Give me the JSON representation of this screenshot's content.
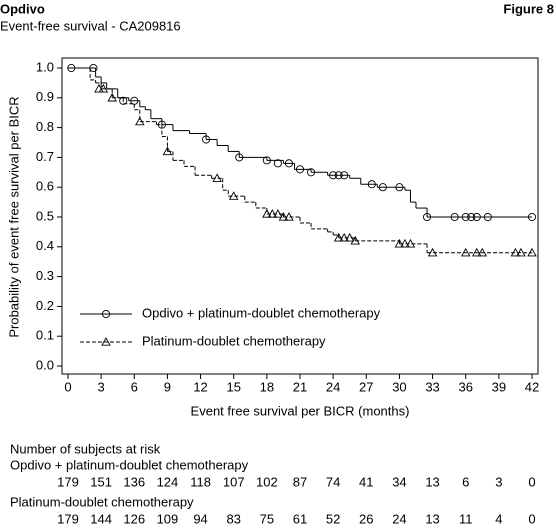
{
  "header": {
    "title": "Opdivo",
    "figure": "Figure 8",
    "subtitle": "Event-free survival - CA209816"
  },
  "chart_data": {
    "type": "step",
    "x_label": "Event free survival per BICR (months)",
    "y_label": "Probability of event free survival per BICR",
    "xlim": [
      -0.5,
      42.5
    ],
    "ylim": [
      0,
      1.0
    ],
    "xticks": [
      0,
      3,
      6,
      9,
      12,
      15,
      18,
      21,
      24,
      27,
      30,
      33,
      36,
      39,
      42
    ],
    "yticks": [
      {
        "value": 0,
        "label": "0.0"
      },
      0.1,
      0.2,
      0.3,
      0.4,
      0.5,
      0.6,
      0.7,
      0.8,
      0.9,
      {
        "value": 1,
        "label": "1.0"
      }
    ],
    "series": [
      {
        "name": "Opdivo + platinum-doublet chemotherapy",
        "color": "#000000",
        "line_style": "solid",
        "marker": "circle",
        "x": [
          0,
          2.5,
          3,
          3.5,
          4.5,
          5.5,
          6.5,
          7,
          7.5,
          8.5,
          9.5,
          11,
          12.5,
          13.5,
          14.5,
          15.5,
          18,
          19.5,
          20.5,
          22,
          23.5,
          25.5,
          26.5,
          28,
          30.5,
          31,
          31.5,
          32.5,
          42
        ],
        "values": [
          1.0,
          0.97,
          0.95,
          0.93,
          0.9,
          0.89,
          0.87,
          0.86,
          0.83,
          0.81,
          0.79,
          0.78,
          0.76,
          0.74,
          0.72,
          0.7,
          0.69,
          0.68,
          0.66,
          0.65,
          0.64,
          0.63,
          0.61,
          0.6,
          0.59,
          0.55,
          0.53,
          0.5,
          0.5
        ],
        "censor_x": [
          0.3,
          2.3,
          5,
          6,
          8.5,
          12.5,
          15.5,
          18,
          19,
          20,
          21,
          22,
          24,
          24.5,
          25,
          27.5,
          28.5,
          30,
          32.5,
          35,
          36,
          36.5,
          37,
          38,
          42
        ],
        "censor_values": [
          1.0,
          1.0,
          0.89,
          0.89,
          0.81,
          0.76,
          0.7,
          0.69,
          0.68,
          0.68,
          0.66,
          0.65,
          0.64,
          0.64,
          0.64,
          0.61,
          0.6,
          0.6,
          0.5,
          0.5,
          0.5,
          0.5,
          0.5,
          0.5,
          0.5
        ]
      },
      {
        "name": "Platinum-doublet chemotherapy",
        "color": "#000000",
        "line_style": "dashed",
        "marker": "triangle",
        "x": [
          0,
          2,
          2.5,
          3,
          4,
          5,
          6,
          6.5,
          8,
          8.5,
          9,
          9.5,
          10.5,
          11.5,
          13,
          14,
          14.5,
          16,
          17,
          18,
          19.5,
          21,
          22,
          23.5,
          24,
          24.5,
          26,
          30,
          32.5,
          42
        ],
        "values": [
          1.0,
          0.96,
          0.95,
          0.93,
          0.9,
          0.88,
          0.86,
          0.82,
          0.81,
          0.77,
          0.72,
          0.69,
          0.67,
          0.64,
          0.63,
          0.59,
          0.57,
          0.55,
          0.53,
          0.51,
          0.5,
          0.48,
          0.46,
          0.45,
          0.44,
          0.43,
          0.42,
          0.41,
          0.38,
          0.38
        ],
        "censor_x": [
          2.8,
          3.2,
          4,
          6.5,
          9,
          13.5,
          15,
          18,
          18.5,
          19,
          19.5,
          20,
          24.5,
          25,
          25.5,
          26,
          30,
          30.5,
          31,
          33,
          36,
          37,
          37.5,
          40.5,
          41,
          42
        ],
        "censor_values": [
          0.93,
          0.93,
          0.9,
          0.82,
          0.72,
          0.63,
          0.57,
          0.51,
          0.51,
          0.51,
          0.5,
          0.5,
          0.43,
          0.43,
          0.43,
          0.42,
          0.41,
          0.41,
          0.41,
          0.38,
          0.38,
          0.38,
          0.38,
          0.38,
          0.38,
          0.38
        ]
      }
    ],
    "risk_table": {
      "title": "Number of subjects at risk",
      "rows": [
        {
          "name": "Opdivo + platinum-doublet chemotherapy",
          "values": [
            179,
            151,
            136,
            124,
            118,
            107,
            102,
            87,
            74,
            41,
            34,
            13,
            6,
            3,
            0
          ]
        },
        {
          "name": "Platinum-doublet chemotherapy",
          "values": [
            179,
            144,
            126,
            109,
            94,
            83,
            75,
            61,
            52,
            26,
            24,
            13,
            11,
            4,
            0
          ]
        }
      ]
    }
  }
}
